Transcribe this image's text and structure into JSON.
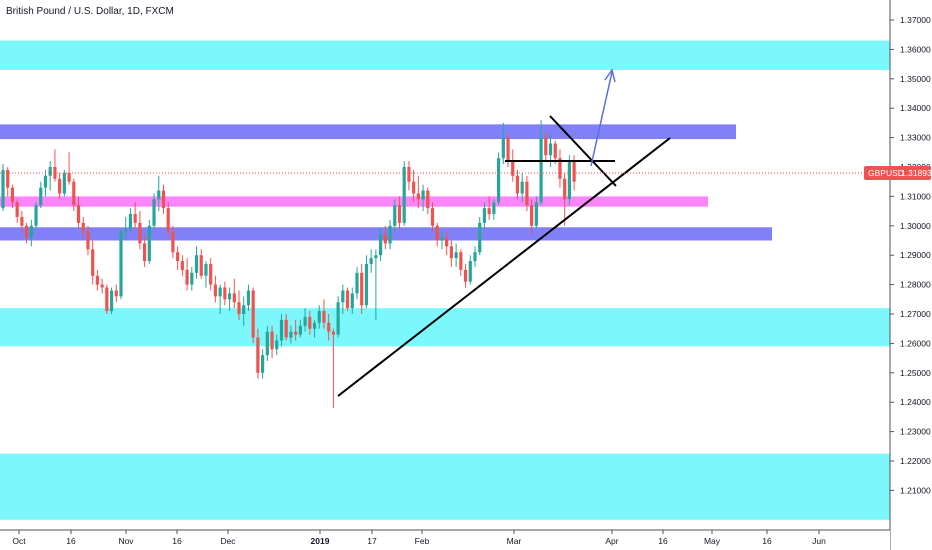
{
  "chart_data": {
    "type": "candlestick",
    "title": "British Pound / U.S. Dollar, 1D, FXCM",
    "symbol": "GBPUSD",
    "last_price": "1.31893",
    "ylim": [
      1.2,
      1.375
    ],
    "y_ticks": [
      "1.37000",
      "1.36000",
      "1.35000",
      "1.34000",
      "1.33000",
      "1.32000",
      "1.31000",
      "1.30000",
      "1.29000",
      "1.28000",
      "1.27000",
      "1.26000",
      "1.25000",
      "1.24000",
      "1.23000",
      "1.22000",
      "1.21000"
    ],
    "x_ticks": [
      "Oct",
      "16",
      "Nov",
      "16",
      "Dec",
      "2019",
      "17",
      "Feb",
      "Mar",
      "Apr",
      "16",
      "May",
      "16",
      "Jun"
    ],
    "candles": [
      [
        1.306,
        1.321,
        1.305,
        1.319
      ],
      [
        1.319,
        1.32,
        1.31,
        1.313
      ],
      [
        1.313,
        1.314,
        1.306,
        1.308
      ],
      [
        1.308,
        1.309,
        1.301,
        1.303
      ],
      [
        1.303,
        1.305,
        1.298,
        1.3
      ],
      [
        1.3,
        1.301,
        1.294,
        1.296
      ],
      [
        1.296,
        1.302,
        1.293,
        1.3
      ],
      [
        1.3,
        1.308,
        1.299,
        1.307
      ],
      [
        1.307,
        1.315,
        1.306,
        1.313
      ],
      [
        1.313,
        1.319,
        1.31,
        1.317
      ],
      [
        1.317,
        1.322,
        1.312,
        1.32
      ],
      [
        1.32,
        1.326,
        1.315,
        1.316
      ],
      [
        1.316,
        1.318,
        1.309,
        1.311
      ],
      [
        1.311,
        1.319,
        1.31,
        1.318
      ],
      [
        1.318,
        1.325,
        1.314,
        1.315
      ],
      [
        1.315,
        1.316,
        1.305,
        1.307
      ],
      [
        1.307,
        1.31,
        1.299,
        1.301
      ],
      [
        1.301,
        1.303,
        1.296,
        1.298
      ],
      [
        1.298,
        1.3,
        1.29,
        1.292
      ],
      [
        1.292,
        1.295,
        1.28,
        1.283
      ],
      [
        1.283,
        1.285,
        1.278,
        1.28
      ],
      [
        1.28,
        1.282,
        1.277,
        1.279
      ],
      [
        1.279,
        1.28,
        1.27,
        1.271
      ],
      [
        1.271,
        1.279,
        1.27,
        1.278
      ],
      [
        1.278,
        1.28,
        1.274,
        1.276
      ],
      [
        1.276,
        1.299,
        1.275,
        1.298
      ],
      [
        1.298,
        1.303,
        1.295,
        1.299
      ],
      [
        1.299,
        1.306,
        1.298,
        1.304
      ],
      [
        1.304,
        1.308,
        1.299,
        1.301
      ],
      [
        1.301,
        1.305,
        1.292,
        1.294
      ],
      [
        1.294,
        1.297,
        1.286,
        1.288
      ],
      [
        1.288,
        1.302,
        1.287,
        1.3
      ],
      [
        1.3,
        1.311,
        1.299,
        1.309
      ],
      [
        1.309,
        1.317,
        1.305,
        1.312
      ],
      [
        1.312,
        1.314,
        1.304,
        1.306
      ],
      [
        1.306,
        1.308,
        1.296,
        1.298
      ],
      [
        1.298,
        1.3,
        1.289,
        1.291
      ],
      [
        1.291,
        1.293,
        1.285,
        1.288
      ],
      [
        1.288,
        1.29,
        1.283,
        1.285
      ],
      [
        1.285,
        1.289,
        1.278,
        1.28
      ],
      [
        1.28,
        1.286,
        1.278,
        1.284
      ],
      [
        1.284,
        1.293,
        1.282,
        1.29
      ],
      [
        1.29,
        1.292,
        1.282,
        1.283
      ],
      [
        1.283,
        1.288,
        1.279,
        1.287
      ],
      [
        1.287,
        1.289,
        1.278,
        1.28
      ],
      [
        1.28,
        1.283,
        1.274,
        1.276
      ],
      [
        1.276,
        1.28,
        1.27,
        1.279
      ],
      [
        1.279,
        1.281,
        1.273,
        1.275
      ],
      [
        1.275,
        1.279,
        1.271,
        1.277
      ],
      [
        1.277,
        1.282,
        1.272,
        1.274
      ],
      [
        1.274,
        1.278,
        1.268,
        1.27
      ],
      [
        1.27,
        1.276,
        1.266,
        1.273
      ],
      [
        1.273,
        1.28,
        1.271,
        1.278
      ],
      [
        1.278,
        1.279,
        1.26,
        1.262
      ],
      [
        1.262,
        1.265,
        1.248,
        1.25
      ],
      [
        1.25,
        1.258,
        1.248,
        1.256
      ],
      [
        1.256,
        1.266,
        1.254,
        1.264
      ],
      [
        1.264,
        1.266,
        1.255,
        1.258
      ],
      [
        1.258,
        1.263,
        1.256,
        1.261
      ],
      [
        1.261,
        1.27,
        1.259,
        1.268
      ],
      [
        1.268,
        1.27,
        1.261,
        1.262
      ],
      [
        1.262,
        1.266,
        1.26,
        1.264
      ],
      [
        1.264,
        1.268,
        1.261,
        1.263
      ],
      [
        1.263,
        1.268,
        1.262,
        1.266
      ],
      [
        1.266,
        1.272,
        1.264,
        1.269
      ],
      [
        1.269,
        1.271,
        1.263,
        1.265
      ],
      [
        1.265,
        1.268,
        1.262,
        1.267
      ],
      [
        1.267,
        1.273,
        1.265,
        1.271
      ],
      [
        1.271,
        1.275,
        1.265,
        1.267
      ],
      [
        1.267,
        1.27,
        1.261,
        1.264
      ],
      [
        1.264,
        1.265,
        1.238,
        1.263
      ],
      [
        1.263,
        1.276,
        1.262,
        1.274
      ],
      [
        1.274,
        1.28,
        1.27,
        1.278
      ],
      [
        1.278,
        1.279,
        1.271,
        1.272
      ],
      [
        1.272,
        1.279,
        1.27,
        1.277
      ],
      [
        1.277,
        1.286,
        1.275,
        1.284
      ],
      [
        1.284,
        1.287,
        1.27,
        1.273
      ],
      [
        1.273,
        1.29,
        1.272,
        1.287
      ],
      [
        1.287,
        1.292,
        1.284,
        1.289
      ],
      [
        1.289,
        1.292,
        1.268,
        1.29
      ],
      [
        1.29,
        1.299,
        1.288,
        1.297
      ],
      [
        1.297,
        1.3,
        1.292,
        1.294
      ],
      [
        1.294,
        1.302,
        1.292,
        1.3
      ],
      [
        1.3,
        1.309,
        1.298,
        1.307
      ],
      [
        1.307,
        1.31,
        1.299,
        1.301
      ],
      [
        1.301,
        1.322,
        1.3,
        1.32
      ],
      [
        1.32,
        1.322,
        1.312,
        1.315
      ],
      [
        1.315,
        1.319,
        1.308,
        1.311
      ],
      [
        1.311,
        1.317,
        1.306,
        1.309
      ],
      [
        1.309,
        1.314,
        1.305,
        1.312
      ],
      [
        1.312,
        1.313,
        1.304,
        1.306
      ],
      [
        1.306,
        1.308,
        1.298,
        1.3
      ],
      [
        1.3,
        1.301,
        1.293,
        1.295
      ],
      [
        1.295,
        1.298,
        1.292,
        1.296
      ],
      [
        1.296,
        1.298,
        1.29,
        1.293
      ],
      [
        1.293,
        1.295,
        1.286,
        1.289
      ],
      [
        1.289,
        1.294,
        1.286,
        1.291
      ],
      [
        1.291,
        1.292,
        1.283,
        1.285
      ],
      [
        1.285,
        1.287,
        1.279,
        1.281
      ],
      [
        1.281,
        1.29,
        1.28,
        1.288
      ],
      [
        1.288,
        1.293,
        1.286,
        1.291
      ],
      [
        1.291,
        1.303,
        1.29,
        1.301
      ],
      [
        1.301,
        1.308,
        1.299,
        1.306
      ],
      [
        1.306,
        1.31,
        1.302,
        1.304
      ],
      [
        1.304,
        1.309,
        1.302,
        1.308
      ],
      [
        1.308,
        1.325,
        1.307,
        1.323
      ],
      [
        1.323,
        1.335,
        1.321,
        1.33
      ],
      [
        1.33,
        1.331,
        1.32,
        1.322
      ],
      [
        1.322,
        1.326,
        1.315,
        1.317
      ],
      [
        1.317,
        1.319,
        1.309,
        1.311
      ],
      [
        1.311,
        1.318,
        1.308,
        1.315
      ],
      [
        1.315,
        1.317,
        1.305,
        1.307
      ],
      [
        1.307,
        1.309,
        1.297,
        1.3
      ],
      [
        1.3,
        1.31,
        1.299,
        1.308
      ],
      [
        1.308,
        1.336,
        1.307,
        1.33
      ],
      [
        1.33,
        1.332,
        1.322,
        1.324
      ],
      [
        1.324,
        1.331,
        1.32,
        1.328
      ],
      [
        1.328,
        1.329,
        1.321,
        1.323
      ],
      [
        1.323,
        1.326,
        1.313,
        1.316
      ],
      [
        1.316,
        1.318,
        1.3,
        1.309
      ],
      [
        1.309,
        1.324,
        1.307,
        1.322
      ],
      [
        1.322,
        1.324,
        1.312,
        1.315
      ]
    ],
    "zones": [
      {
        "from": 1.353,
        "to": 1.363,
        "color": "#7cf7fb"
      },
      {
        "from": 1.3295,
        "to": 1.3345,
        "color": "#8080f8"
      },
      {
        "from": 1.3065,
        "to": 1.31,
        "color": "#fc85fc"
      },
      {
        "from": 1.295,
        "to": 1.2995,
        "color": "#8080f8"
      },
      {
        "from": 1.259,
        "to": 1.272,
        "color": "#7cf7fb"
      },
      {
        "from": 1.2,
        "to": 1.2225,
        "color": "#7cf7fb"
      }
    ],
    "colors": {
      "up": "#26a69a",
      "down": "#ef5350",
      "price_tag": "#ef5350",
      "arrow": "#5b6ed9",
      "trendline": "#000000"
    },
    "grid": false
  }
}
